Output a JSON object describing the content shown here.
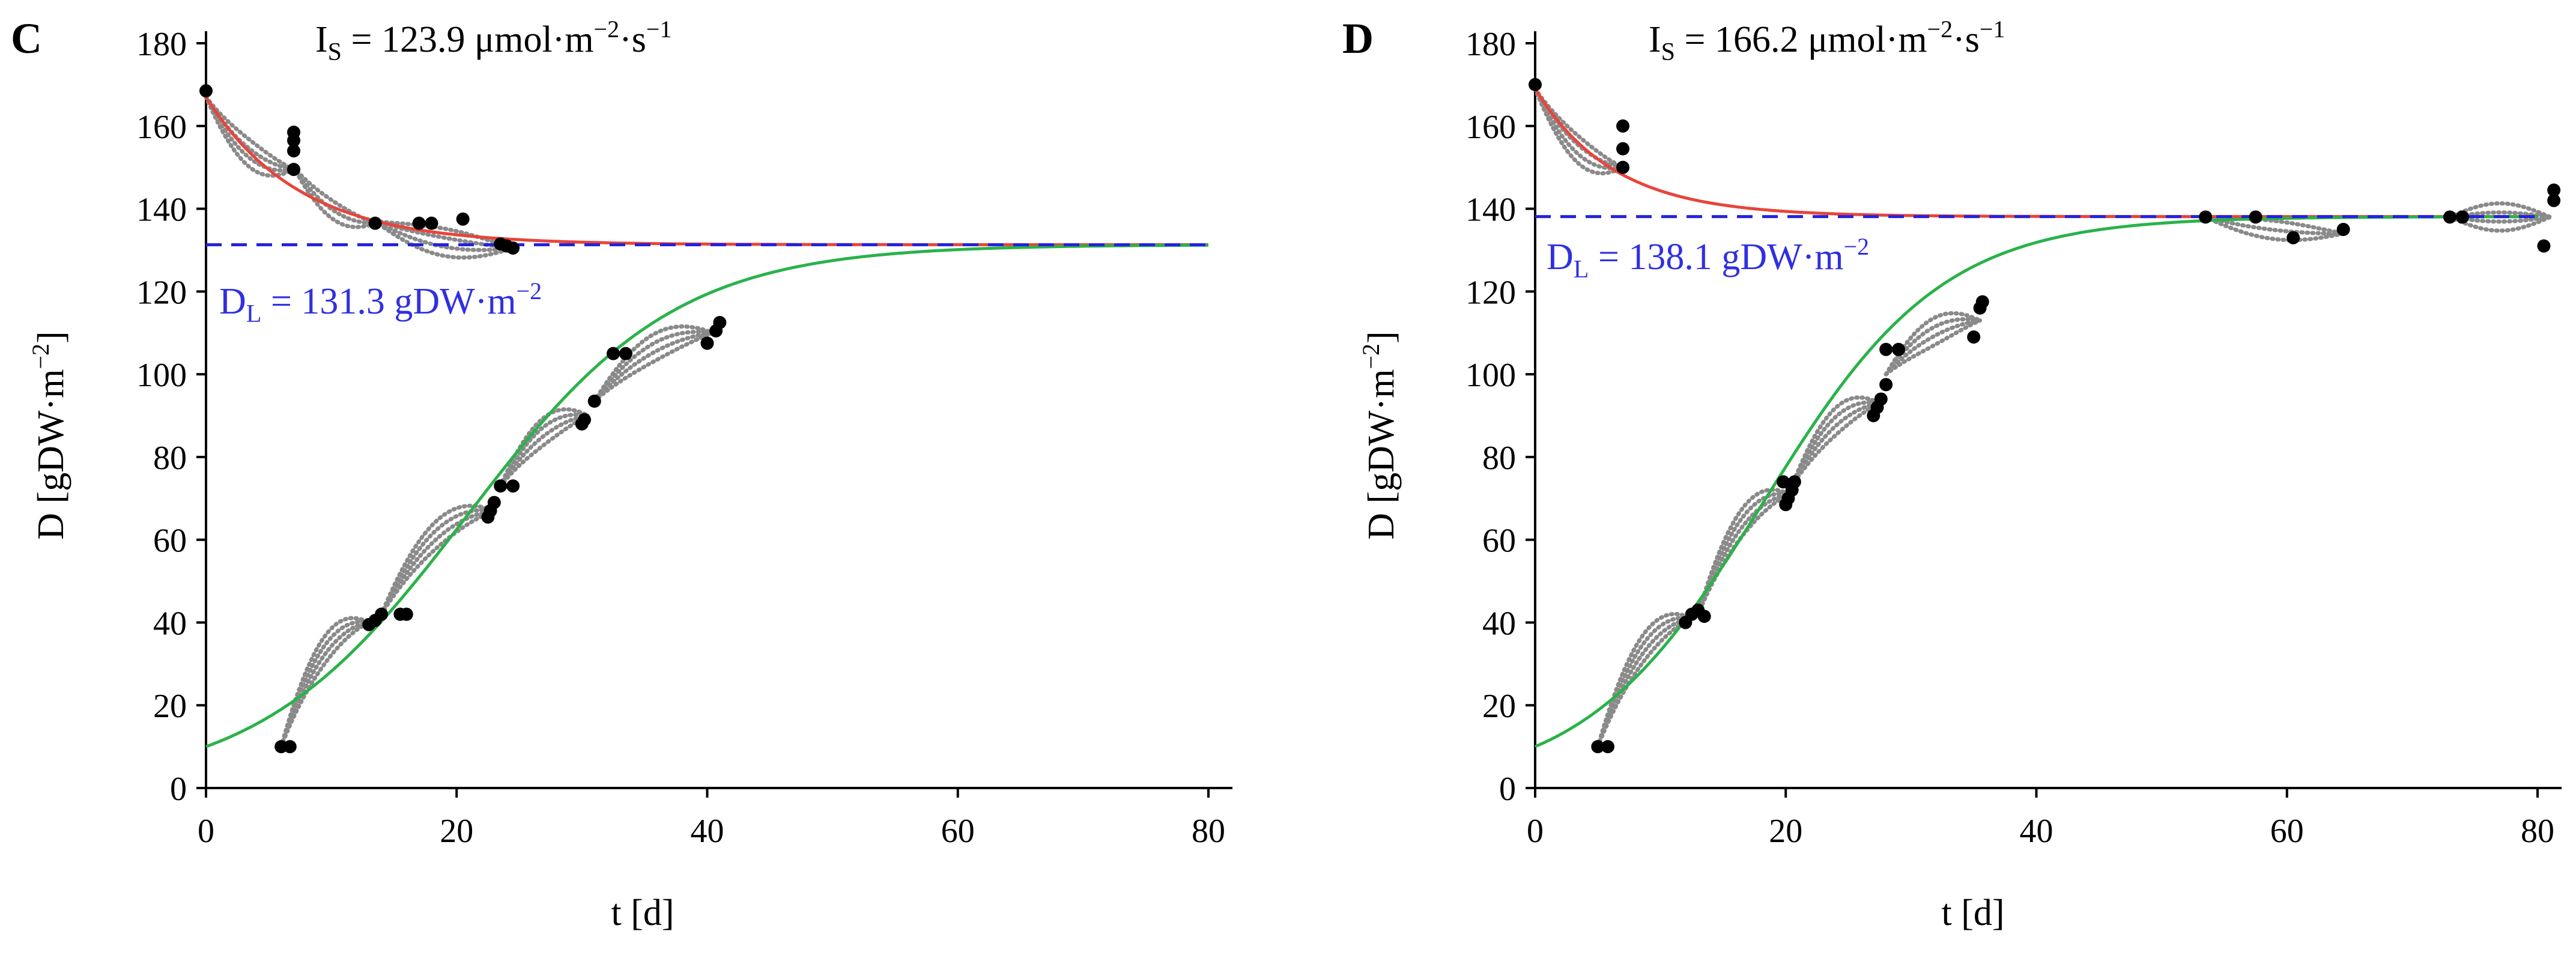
{
  "chart_data": [
    {
      "type": "line",
      "panel": "C",
      "xlabel": "t [d]",
      "ylabel_main": "D [gDW·m",
      "ylabel_sup": "−2",
      "ylabel_end": "]",
      "xlim": [
        0,
        80
      ],
      "ylim": [
        0,
        180
      ],
      "xticks": [
        0,
        20,
        40,
        60,
        80
      ],
      "yticks": [
        0,
        20,
        40,
        60,
        80,
        100,
        120,
        140,
        160,
        180
      ],
      "grid": false,
      "irradiance": {
        "symbol": "I",
        "sub": "S",
        "text": " = 123.9 μmol·m",
        "sup1": "−2",
        "mid": "·s",
        "sup2": "−1"
      },
      "limit_label": {
        "symbol": "D",
        "sub": "L",
        "text": " = 131.3 gDW·m",
        "sup": "−2"
      },
      "series": [
        {
          "name": "decay fit",
          "color": "#e8443a",
          "style": "solid",
          "kind": "decay",
          "y0": 167,
          "yL": 131.3,
          "k": 0.135,
          "x_range": [
            0,
            80
          ]
        },
        {
          "name": "growth fit",
          "color": "#2ab24a",
          "style": "solid",
          "kind": "logistic",
          "yL": 131.3,
          "y0": 10,
          "r": 0.12,
          "x_range": [
            0,
            80
          ]
        },
        {
          "name": "limit line",
          "color": "#2323dd",
          "style": "dashed",
          "kind": "hline",
          "y": 131.3,
          "x_range": [
            0,
            80
          ]
        }
      ],
      "observations": [
        {
          "x": 0,
          "y": 168.5
        },
        {
          "x": 7,
          "y": 158.5
        },
        {
          "x": 7,
          "y": 156.5
        },
        {
          "x": 7,
          "y": 154
        },
        {
          "x": 7,
          "y": 149.5
        },
        {
          "x": 13.5,
          "y": 136.5
        },
        {
          "x": 17,
          "y": 136.5
        },
        {
          "x": 18,
          "y": 136.5
        },
        {
          "x": 20.5,
          "y": 137.5
        },
        {
          "x": 23.5,
          "y": 131.5
        },
        {
          "x": 24,
          "y": 131
        },
        {
          "x": 24.5,
          "y": 130.5
        },
        {
          "x": 6,
          "y": 10
        },
        {
          "x": 6.7,
          "y": 10
        },
        {
          "x": 13,
          "y": 39.5
        },
        {
          "x": 13.5,
          "y": 40.5
        },
        {
          "x": 14,
          "y": 42
        },
        {
          "x": 15.5,
          "y": 42
        },
        {
          "x": 16,
          "y": 42
        },
        {
          "x": 22.5,
          "y": 65.5
        },
        {
          "x": 22.7,
          "y": 67
        },
        {
          "x": 23,
          "y": 69
        },
        {
          "x": 23.5,
          "y": 73
        },
        {
          "x": 24.5,
          "y": 73
        },
        {
          "x": 30,
          "y": 88
        },
        {
          "x": 30.2,
          "y": 89
        },
        {
          "x": 31,
          "y": 93.5
        },
        {
          "x": 32.5,
          "y": 105
        },
        {
          "x": 33.5,
          "y": 105
        },
        {
          "x": 40,
          "y": 107.5
        },
        {
          "x": 40.7,
          "y": 110.5
        },
        {
          "x": 41,
          "y": 112.5
        }
      ],
      "simulations": [
        {
          "x": [
            0,
            7
          ],
          "y": [
            167,
            149.5
          ],
          "n": 4
        },
        {
          "x": [
            7,
            13.5
          ],
          "y": [
            150,
            136.5
          ],
          "n": 3
        },
        {
          "x": [
            13.5,
            24.5
          ],
          "y": [
            137,
            130.5
          ],
          "n": 4
        },
        {
          "x": [
            6,
            13
          ],
          "y": [
            10,
            40
          ],
          "n": 4
        },
        {
          "x": [
            14,
            23
          ],
          "y": [
            42,
            67
          ],
          "n": 4
        },
        {
          "x": [
            23.5,
            30.5
          ],
          "y": [
            73,
            90
          ],
          "n": 4
        },
        {
          "x": [
            31,
            40.5
          ],
          "y": [
            93.5,
            110
          ],
          "n": 4
        }
      ]
    },
    {
      "type": "line",
      "panel": "D",
      "xlabel": "t [d]",
      "ylabel_main": "D [gDW·m",
      "ylabel_sup": "−2",
      "ylabel_end": "]",
      "xlim": [
        0,
        80
      ],
      "ylim": [
        0,
        180
      ],
      "xticks": [
        0,
        20,
        40,
        60,
        80
      ],
      "yticks": [
        0,
        20,
        40,
        60,
        80,
        100,
        120,
        140,
        160,
        180
      ],
      "grid": false,
      "irradiance": {
        "symbol": "I",
        "sub": "S",
        "text": " = 166.2 μmol·m",
        "sup1": "−2",
        "mid": "·s",
        "sup2": "−1"
      },
      "limit_label": {
        "symbol": "D",
        "sub": "L",
        "text": " = 138.1 gDW·m",
        "sup": "−2"
      },
      "series": [
        {
          "name": "decay fit",
          "color": "#e8443a",
          "style": "solid",
          "kind": "decay",
          "y0": 169,
          "yL": 138.1,
          "k": 0.16,
          "x_range": [
            0,
            80
          ]
        },
        {
          "name": "growth fit",
          "color": "#2ab24a",
          "style": "solid",
          "kind": "logistic",
          "yL": 138.1,
          "y0": 10,
          "r": 0.14,
          "x_range": [
            0,
            80
          ]
        },
        {
          "name": "limit line",
          "color": "#2323dd",
          "style": "dashed",
          "kind": "hline",
          "y": 138.1,
          "x_range": [
            0,
            80
          ]
        }
      ],
      "observations": [
        {
          "x": 0,
          "y": 170
        },
        {
          "x": 7,
          "y": 160
        },
        {
          "x": 7,
          "y": 154.5
        },
        {
          "x": 7,
          "y": 150
        },
        {
          "x": 53.5,
          "y": 138
        },
        {
          "x": 57.5,
          "y": 138
        },
        {
          "x": 60.5,
          "y": 133
        },
        {
          "x": 64.5,
          "y": 135
        },
        {
          "x": 73,
          "y": 138
        },
        {
          "x": 74,
          "y": 138
        },
        {
          "x": 80.5,
          "y": 131
        },
        {
          "x": 81.3,
          "y": 142
        },
        {
          "x": 81.3,
          "y": 144.5
        },
        {
          "x": 5,
          "y": 10
        },
        {
          "x": 5.8,
          "y": 10
        },
        {
          "x": 12,
          "y": 40
        },
        {
          "x": 12.5,
          "y": 42
        },
        {
          "x": 13,
          "y": 43
        },
        {
          "x": 13.5,
          "y": 41.5
        },
        {
          "x": 20,
          "y": 68.5
        },
        {
          "x": 20.2,
          "y": 70
        },
        {
          "x": 20.5,
          "y": 72
        },
        {
          "x": 20.7,
          "y": 74
        },
        {
          "x": 19.8,
          "y": 74
        },
        {
          "x": 27,
          "y": 90
        },
        {
          "x": 27.3,
          "y": 92
        },
        {
          "x": 27.6,
          "y": 94
        },
        {
          "x": 28,
          "y": 97.5
        },
        {
          "x": 28,
          "y": 106
        },
        {
          "x": 29,
          "y": 106
        },
        {
          "x": 35,
          "y": 109
        },
        {
          "x": 35.5,
          "y": 116
        },
        {
          "x": 35.7,
          "y": 117.5
        }
      ],
      "simulations": [
        {
          "x": [
            0,
            7
          ],
          "y": [
            169,
            150
          ],
          "n": 4
        },
        {
          "x": [
            53.5,
            64.5
          ],
          "y": [
            138,
            134
          ],
          "n": 3
        },
        {
          "x": [
            73,
            81
          ],
          "y": [
            138,
            138
          ],
          "n": 4
        },
        {
          "x": [
            5,
            12.5
          ],
          "y": [
            10,
            41
          ],
          "n": 4
        },
        {
          "x": [
            13,
            20.3
          ],
          "y": [
            42,
            71
          ],
          "n": 4
        },
        {
          "x": [
            20.5,
            27.5
          ],
          "y": [
            73,
            93
          ],
          "n": 4
        },
        {
          "x": [
            28,
            35.5
          ],
          "y": [
            100,
            113
          ],
          "n": 4
        }
      ]
    }
  ]
}
